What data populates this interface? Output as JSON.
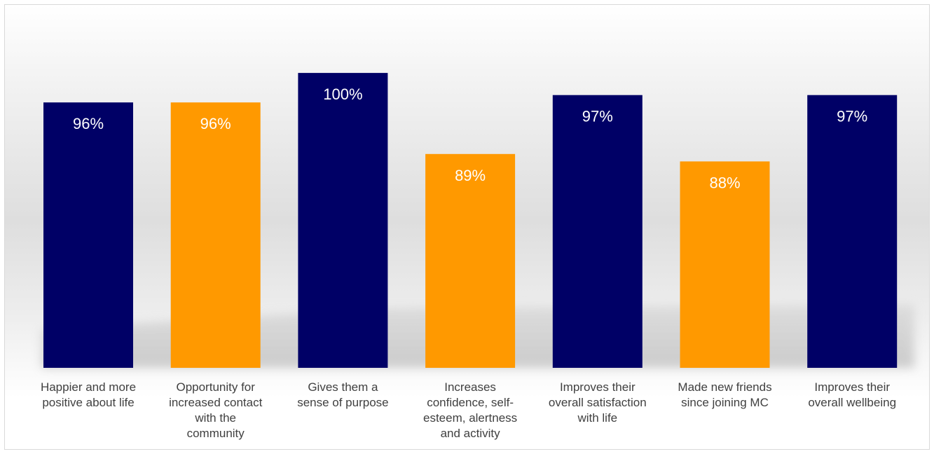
{
  "chart_data": {
    "type": "bar",
    "title": "",
    "xlabel": "",
    "ylabel": "",
    "ylim": [
      60,
      104
    ],
    "grid": false,
    "legend": "none",
    "value_suffix": "%",
    "categories": [
      [
        "Happier and more",
        "positive about life"
      ],
      [
        "Opportunity for",
        "increased contact",
        "with the",
        "community"
      ],
      [
        "Gives them a",
        "sense of purpose"
      ],
      [
        "Increases",
        "confidence, self-",
        "esteem, alertness",
        "and activity"
      ],
      [
        "Improves their",
        "overall satisfaction",
        "with life"
      ],
      [
        "Made new friends",
        "since joining MC"
      ],
      [
        "Improves their",
        "overall wellbeing"
      ]
    ],
    "values": [
      96,
      96,
      100,
      89,
      97,
      88,
      97
    ],
    "bar_colors": [
      "#000066",
      "#FF9900",
      "#000066",
      "#FF9900",
      "#000066",
      "#FF9900",
      "#000066"
    ]
  },
  "colors": {
    "navy": "#000066",
    "orange": "#FF9900",
    "label_text": "#404040"
  }
}
